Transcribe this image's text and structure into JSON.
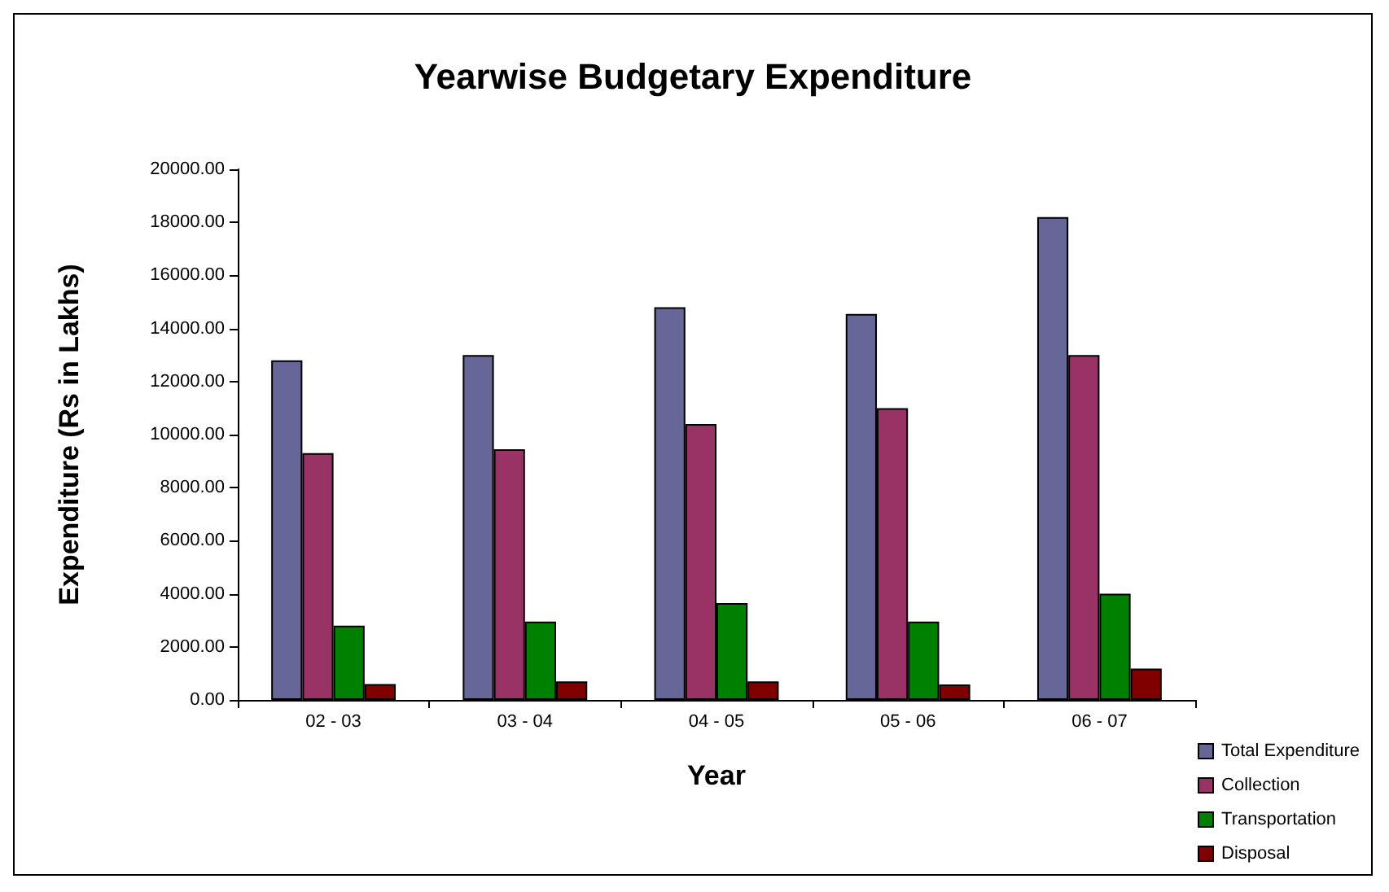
{
  "chart_data": {
    "type": "bar",
    "title": "Yearwise Budgetary Expenditure",
    "xlabel": "Year",
    "ylabel": "Expenditure (Rs in Lakhs)",
    "categories": [
      "02 - 03",
      "03 - 04",
      "04 - 05",
      "05 - 06",
      "06 - 07"
    ],
    "series": [
      {
        "name": "Total Expenditure",
        "color": "#666699",
        "values": [
          12800,
          13000,
          14800,
          14550,
          18200
        ]
      },
      {
        "name": "Collection",
        "color": "#993366",
        "values": [
          9300,
          9450,
          10400,
          11000,
          13000
        ]
      },
      {
        "name": "Transportation",
        "color": "#008000",
        "values": [
          2800,
          2950,
          3650,
          2950,
          4000
        ]
      },
      {
        "name": "Disposal",
        "color": "#800000",
        "values": [
          600,
          700,
          700,
          580,
          1180
        ]
      }
    ],
    "ylim": [
      0,
      20000
    ],
    "yticks": [
      {
        "value": 0,
        "label": "0.00"
      },
      {
        "value": 2000,
        "label": "2000.00"
      },
      {
        "value": 4000,
        "label": "4000.00"
      },
      {
        "value": 6000,
        "label": "6000.00"
      },
      {
        "value": 8000,
        "label": "8000.00"
      },
      {
        "value": 10000,
        "label": "10000.00"
      },
      {
        "value": 12000,
        "label": "12000.00"
      },
      {
        "value": 14000,
        "label": "14000.00"
      },
      {
        "value": 16000,
        "label": "16000.00"
      },
      {
        "value": 18000,
        "label": "18000.00"
      },
      {
        "value": 20000,
        "label": "20000.00"
      }
    ],
    "grid": false,
    "legend": "bottom right"
  }
}
